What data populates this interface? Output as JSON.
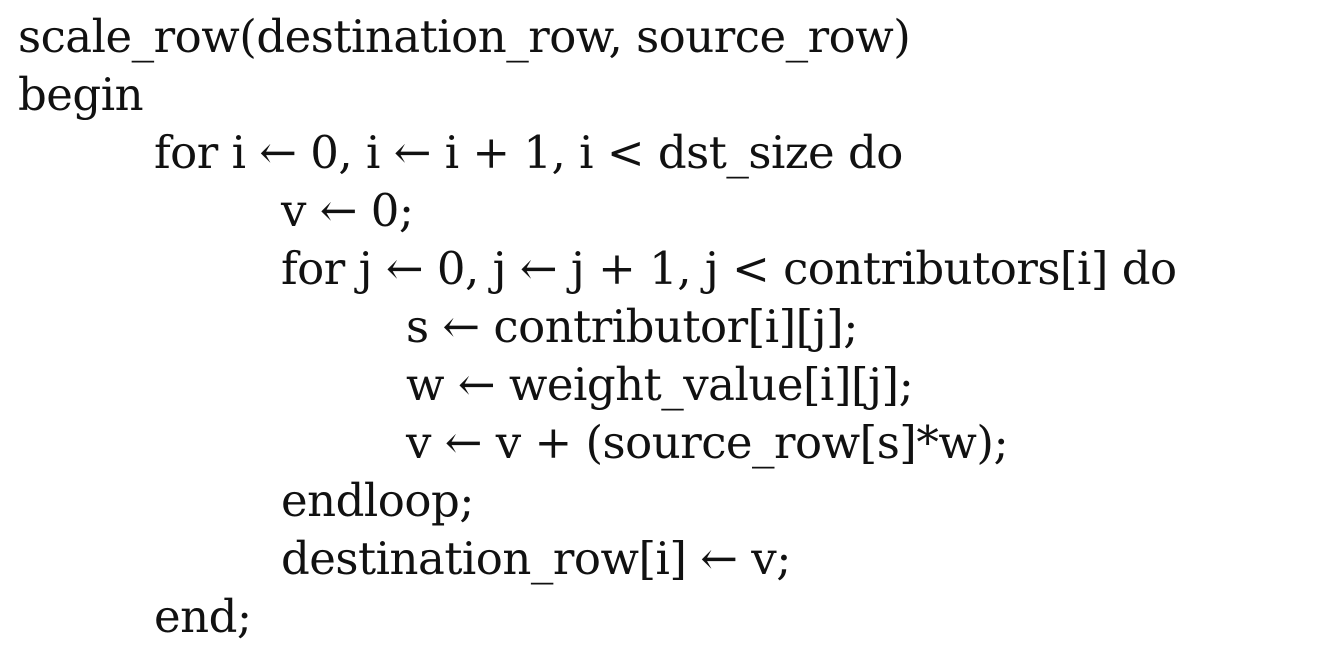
{
  "lines": [
    "scale_row(destination_row, source_row)",
    "begin",
    "for i ← 0, i ← i + 1, i < dst_size do",
    "v ← 0;",
    "for j ← 0, j ← j + 1, j < contributors[i] do",
    "s ← contributor[i][j];",
    "w ← weight_value[i][j];",
    "v ← v + (source_row[s]*w);",
    "endloop;",
    "destination_row[i] ← v;",
    "end;"
  ]
}
